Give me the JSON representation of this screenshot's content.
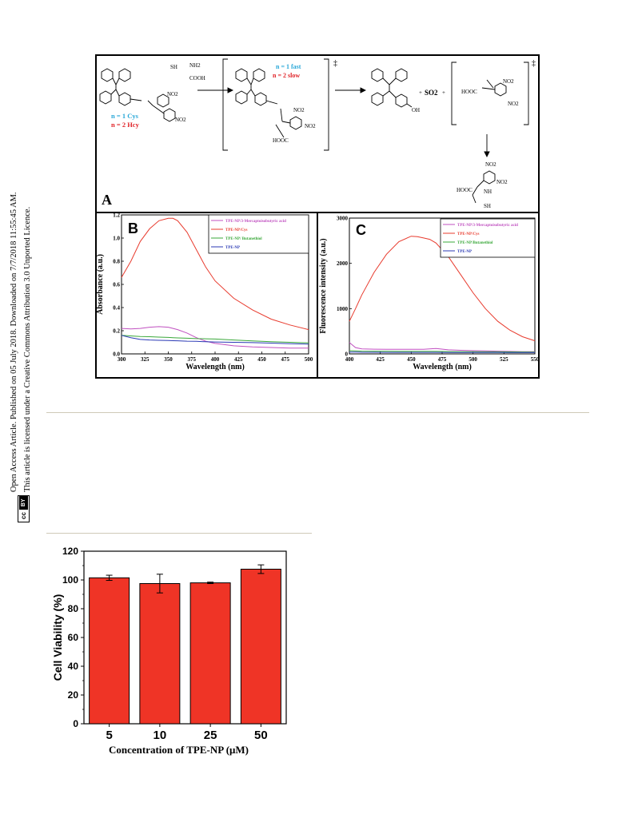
{
  "sidebar": {
    "line1": "Open Access Article. Published on 05 July 2018. Downloaded on 7/7/2018 11:55:45 AM.",
    "line2": "This article is licensed under a Creative Commons Attribution 3.0 Unported Licence.",
    "cc_label": "cc",
    "by_label": "BY"
  },
  "scheme": {
    "panel_label": "A",
    "reagent_left_top": "SH",
    "reagent_nh2": "NH2",
    "reagent_cooh": "COOH",
    "n_cys": "n = 1 Cys",
    "n_hcy": "n = 2 Hcy",
    "n_fast": "n = 1 fast",
    "n_slow": "n = 2 slow",
    "no2": "NO2",
    "so2": "SO2",
    "oh": "OH",
    "hooc": "HOOC",
    "nh": "NH",
    "dagger": "‡",
    "plus": "+"
  },
  "panel_b": {
    "label": "B",
    "legend_colors": [
      "#c050c0",
      "#e83b2e",
      "#3aa83a",
      "#2b3ab5"
    ],
    "chart_data": {
      "type": "line",
      "xlabel": "Wavelength (nm)",
      "ylabel": "Absorbance (a.u.)",
      "xlim": [
        300,
        500
      ],
      "ylim": [
        0,
        1.2
      ],
      "x_ticks": [
        "300",
        "325",
        "350",
        "375",
        "400",
        "425",
        "450",
        "475",
        "500"
      ],
      "y_ticks": [
        "0.0",
        "0.2",
        "0.4",
        "0.6",
        "0.8",
        "1.0",
        "1.2"
      ],
      "x": [
        300,
        310,
        320,
        330,
        340,
        350,
        355,
        360,
        370,
        380,
        390,
        400,
        420,
        440,
        460,
        480,
        500
      ],
      "series": [
        {
          "name": "TPE-NP/3-Mercaptoisobutyric acid",
          "color": "#c050c0",
          "values": [
            0.22,
            0.215,
            0.22,
            0.23,
            0.235,
            0.23,
            0.22,
            0.21,
            0.18,
            0.14,
            0.11,
            0.09,
            0.07,
            0.06,
            0.055,
            0.05,
            0.05
          ]
        },
        {
          "name": "TPE-NP/Cys",
          "color": "#e83b2e",
          "values": [
            0.66,
            0.8,
            0.97,
            1.08,
            1.15,
            1.17,
            1.17,
            1.15,
            1.05,
            0.9,
            0.75,
            0.63,
            0.48,
            0.38,
            0.3,
            0.25,
            0.21
          ]
        },
        {
          "name": "TPE-NP/ Butanethiol",
          "color": "#3aa83a",
          "values": [
            0.16,
            0.155,
            0.15,
            0.148,
            0.145,
            0.142,
            0.14,
            0.138,
            0.135,
            0.132,
            0.13,
            0.128,
            0.12,
            0.112,
            0.105,
            0.1,
            0.095
          ]
        },
        {
          "name": "TPE-NP",
          "color": "#2b3ab5",
          "values": [
            0.16,
            0.14,
            0.125,
            0.12,
            0.117,
            0.115,
            0.114,
            0.113,
            0.11,
            0.108,
            0.105,
            0.103,
            0.1,
            0.097,
            0.093,
            0.088,
            0.085
          ]
        }
      ]
    }
  },
  "panel_c": {
    "label": "C",
    "chart_data": {
      "type": "line",
      "xlabel": "Wavelength (nm)",
      "ylabel": "Fluorescence intensity (a.u.)",
      "xlim": [
        400,
        550
      ],
      "ylim": [
        0,
        3000
      ],
      "x_ticks": [
        "400",
        "425",
        "450",
        "475",
        "500",
        "525",
        "550"
      ],
      "y_ticks": [
        "0",
        "1000",
        "2000",
        "3000"
      ],
      "x": [
        400,
        405,
        410,
        420,
        430,
        440,
        450,
        455,
        460,
        465,
        470,
        480,
        490,
        500,
        510,
        520,
        530,
        540,
        550
      ],
      "series": [
        {
          "name": "TPE-NP/3-Mercaptoisobutyric acid",
          "color": "#c050c0",
          "values": [
            250,
            140,
            110,
            105,
            100,
            100,
            100,
            100,
            100,
            110,
            120,
            90,
            80,
            70,
            65,
            60,
            55,
            50,
            50
          ]
        },
        {
          "name": "TPE-NP/Cys",
          "color": "#e83b2e",
          "values": [
            720,
            1000,
            1300,
            1800,
            2200,
            2480,
            2600,
            2590,
            2560,
            2530,
            2450,
            2150,
            1750,
            1350,
            1000,
            720,
            520,
            380,
            290
          ]
        },
        {
          "name": "TPE-NP/Butanethiol",
          "color": "#3aa83a",
          "values": [
            70,
            65,
            60,
            58,
            56,
            55,
            55,
            55,
            55,
            55,
            55,
            52,
            50,
            48,
            46,
            45,
            44,
            42,
            40
          ]
        },
        {
          "name": "TPE-NP",
          "color": "#2b3ab5",
          "values": [
            40,
            38,
            36,
            35,
            34,
            34,
            33,
            33,
            33,
            33,
            33,
            32,
            31,
            30,
            30,
            30,
            29,
            29,
            28
          ]
        }
      ]
    }
  },
  "bar_chart": {
    "chart_data": {
      "type": "bar",
      "categories": [
        "5",
        "10",
        "25",
        "50"
      ],
      "values": [
        101.5,
        97.5,
        98,
        107.5
      ],
      "errors": [
        1.8,
        6.5,
        0.5,
        3
      ],
      "xlabel": "Concentration of TPE-NP (μM)",
      "ylabel": "Cell Viability (%)",
      "ylim": [
        0,
        120
      ],
      "y_ticks": [
        "0",
        "20",
        "40",
        "60",
        "80",
        "100",
        "120"
      ],
      "bar_color": "#ef3426"
    }
  }
}
